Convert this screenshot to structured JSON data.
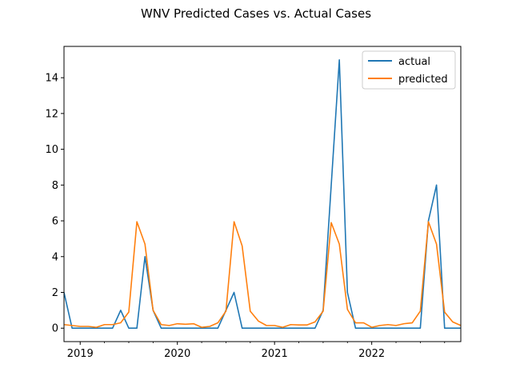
{
  "chart_data": {
    "type": "line",
    "title": "WNV Predicted Cases vs. Actual Cases",
    "xlabel": "",
    "ylabel": "",
    "x_start": "2018-11",
    "x_end": "2022-12",
    "x_ticks": [
      {
        "label": "2019",
        "date": "2019-01"
      },
      {
        "label": "2020",
        "date": "2020-01"
      },
      {
        "label": "2021",
        "date": "2021-01"
      },
      {
        "label": "2022",
        "date": "2022-01"
      }
    ],
    "y_ticks": [
      0,
      2,
      4,
      6,
      8,
      10,
      12,
      14
    ],
    "ylim": [
      -0.75,
      15.75
    ],
    "grid": false,
    "legend_position": "top-right",
    "x": [
      "2018-11",
      "2018-12",
      "2019-01",
      "2019-02",
      "2019-03",
      "2019-04",
      "2019-05",
      "2019-06",
      "2019-07",
      "2019-08",
      "2019-09",
      "2019-10",
      "2019-11",
      "2019-12",
      "2020-01",
      "2020-02",
      "2020-03",
      "2020-04",
      "2020-05",
      "2020-06",
      "2020-07",
      "2020-08",
      "2020-09",
      "2020-10",
      "2020-11",
      "2020-12",
      "2021-01",
      "2021-02",
      "2021-03",
      "2021-04",
      "2021-05",
      "2021-06",
      "2021-07",
      "2021-08",
      "2021-09",
      "2021-10",
      "2021-11",
      "2021-12",
      "2022-01",
      "2022-02",
      "2022-03",
      "2022-04",
      "2022-05",
      "2022-06",
      "2022-07",
      "2022-08",
      "2022-09",
      "2022-10",
      "2022-11",
      "2022-12"
    ],
    "series": [
      {
        "name": "actual",
        "color": "#1f77b4",
        "values": [
          2,
          0,
          0,
          0,
          0,
          0,
          0,
          1,
          0,
          0,
          4,
          1,
          0,
          0,
          0,
          0,
          0,
          0,
          0,
          0,
          1,
          2,
          0,
          0,
          0,
          0,
          0,
          0,
          0,
          0,
          0,
          0,
          1,
          8,
          15,
          2,
          0,
          0,
          0,
          0,
          0,
          0,
          0,
          0,
          0,
          6,
          8,
          0,
          0,
          0
        ]
      },
      {
        "name": "predicted",
        "color": "#ff7f0e",
        "values": [
          0.2,
          0.15,
          0.1,
          0.1,
          0.05,
          0.2,
          0.2,
          0.3,
          0.9,
          5.95,
          4.7,
          1.0,
          0.2,
          0.15,
          0.25,
          0.22,
          0.25,
          0.05,
          0.1,
          0.3,
          0.95,
          5.95,
          4.6,
          0.95,
          0.4,
          0.15,
          0.15,
          0.05,
          0.2,
          0.18,
          0.18,
          0.35,
          0.95,
          5.9,
          4.7,
          1.05,
          0.3,
          0.3,
          0.05,
          0.15,
          0.2,
          0.15,
          0.25,
          0.3,
          0.95,
          5.95,
          4.7,
          0.9,
          0.35,
          0.15
        ]
      }
    ]
  }
}
